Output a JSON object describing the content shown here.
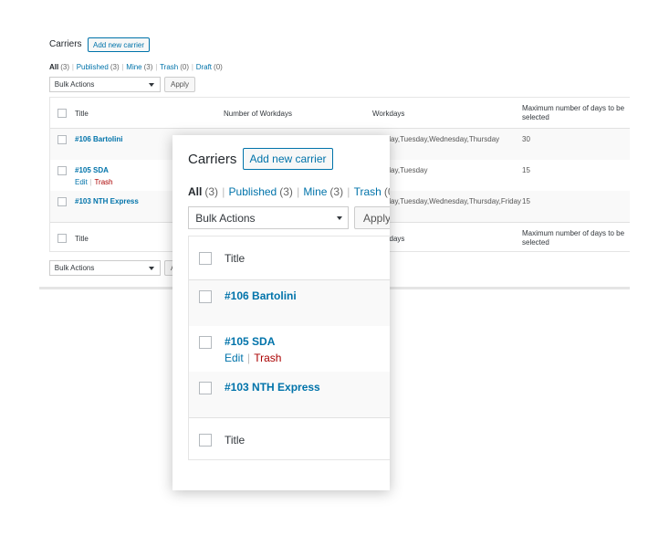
{
  "header": {
    "title": "Carriers",
    "add_button": "Add new carrier"
  },
  "filters": [
    {
      "label": "All",
      "count": "(3)"
    },
    {
      "label": "Published",
      "count": "(3)"
    },
    {
      "label": "Mine",
      "count": "(3)"
    },
    {
      "label": "Trash",
      "count": "(0)"
    },
    {
      "label": "Draft",
      "count": "(0)"
    }
  ],
  "separator": "|",
  "bulk_actions": {
    "select": "Bulk Actions",
    "apply": "Apply"
  },
  "table": {
    "columns": [
      "Title",
      "Number of Workdays",
      "Workdays",
      "Maximum number of days to be selected"
    ],
    "rows": [
      {
        "title": "#106 Bartolini",
        "workdays": "Monday,Tuesday,Wednesday,Thursday",
        "max_days": 30
      },
      {
        "title": "#105 SDA",
        "actions": [
          "Edit",
          "Trash"
        ],
        "workdays": "Monday,Tuesday",
        "max_days": 15
      },
      {
        "title": "#103 NTH Express",
        "workdays": "Monday,Tuesday,Wednesday,Thursday,Friday",
        "max_days": 15
      }
    ]
  }
}
